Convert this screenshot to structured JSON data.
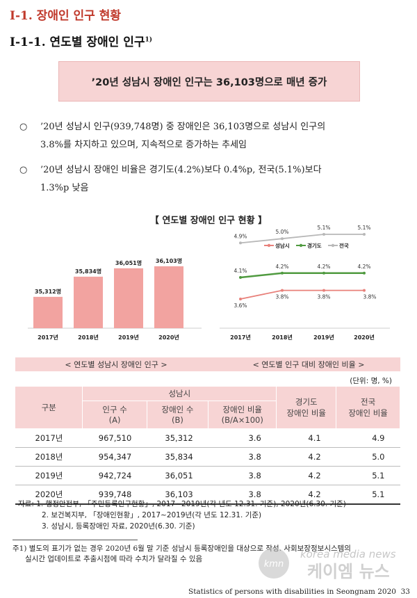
{
  "heading1": "I-1. 장애인 인구 현황",
  "heading2": "I-1-1. 연도별 장애인 인구",
  "heading2_sup": "1)",
  "banner": "’20년 성남시 장애인 인구는 36,103명으로 매년 증가",
  "bullets": [
    {
      "marker": "○",
      "line1": "’20년 성남시 인구(939,748명) 중 장애인은 36,103명으로 성남시 인구의",
      "line2": "3.8%를 차지하고 있으며, 지속적으로 증가하는 추세임"
    },
    {
      "marker": "○",
      "line1": "’20년 성남시 장애인 비율은 경기도(4.2%)보다 0.4%p, 전국(5.1%)보다",
      "line2": "1.3%p 낮음"
    }
  ],
  "section_title": "【 연도별 장애인 인구 현황 】",
  "caption_left": "< 연도별 성남시 장애인 인구 >",
  "caption_right": "< 연도별 인구 대비 장애인 비율 >",
  "unit": "(단위: 명, %)",
  "chart_data": [
    {
      "type": "bar",
      "categories": [
        "2017년",
        "2018년",
        "2019년",
        "2020년"
      ],
      "values": [
        35312,
        35834,
        36051,
        36103
      ],
      "value_labels": [
        "35,312명",
        "35,834명",
        "36,051명",
        "36,103명"
      ],
      "color": "#f2a3a0"
    },
    {
      "type": "line",
      "categories": [
        "2017년",
        "2018년",
        "2019년",
        "2020년"
      ],
      "series": [
        {
          "name": "성남시",
          "values": [
            3.6,
            3.8,
            3.8,
            3.8
          ],
          "labels": [
            "3.6%",
            "3.8%",
            "3.8%",
            "3.8%"
          ],
          "color": "#e8807a"
        },
        {
          "name": "경기도",
          "values": [
            4.1,
            4.2,
            4.2,
            4.2
          ],
          "labels": [
            "4.1%",
            "4.2%",
            "4.2%",
            "4.2%"
          ],
          "color": "#4f9a3f"
        },
        {
          "name": "전국",
          "values": [
            4.9,
            5.0,
            5.1,
            5.1
          ],
          "labels": [
            "4.9%",
            "5.0%",
            "5.1%",
            "5.1%"
          ],
          "color": "#b8b8b8"
        }
      ],
      "legend_position": "top-right"
    }
  ],
  "table": {
    "h_gubun": "구분",
    "h_seongnam": "성남시",
    "h_pop_1": "인구 수",
    "h_pop_2": "(A)",
    "h_dis_1": "장애인 수",
    "h_dis_2": "(B)",
    "h_ratio_1": "장애인 비율",
    "h_ratio_2": "(B/A×100)",
    "h_gg_1": "경기도",
    "h_gg_2": "장애인 비율",
    "h_nat_1": "전국",
    "h_nat_2": "장애인 비율",
    "rows": [
      {
        "year": "2017년",
        "pop": "967,510",
        "dis": "35,312",
        "ratio": "3.6",
        "gg": "4.1",
        "nat": "4.9"
      },
      {
        "year": "2018년",
        "pop": "954,347",
        "dis": "35,834",
        "ratio": "3.8",
        "gg": "4.2",
        "nat": "5.0"
      },
      {
        "year": "2019년",
        "pop": "942,724",
        "dis": "36,051",
        "ratio": "3.8",
        "gg": "4.2",
        "nat": "5.1"
      },
      {
        "year": "2020년",
        "pop": "939,748",
        "dis": "36,103",
        "ratio": "3.8",
        "gg": "4.2",
        "nat": "5.1"
      }
    ]
  },
  "sources": [
    "자료: 1. 행정안전부, 「주민등록인구현황」, 2017~2019년(각 년도 12.31. 기준), 2020년(6.30. 기준)",
    "2. 보건복지부, 「장애인현황」, 2017~2019년(각 년도 12.31. 기준)",
    "3. 성남시, 등록장애인 자료, 2020년(6.30. 기준)"
  ],
  "footnote_1": "주1) 별도의 표기가 없는 경우 2020년 6월 말 기준 성남시 등록장애인을 대상으로 작성. 사회보장정보시스템의",
  "footnote_2": "실시간 업데이트로 추출시점에 따라 수치가 달라질 수 있음",
  "watermark_1": "korea media news",
  "watermark_2": "케이엠 뉴스",
  "watermark_logo": "kmn",
  "footer_text": "Statistics of persons with disabilities in Seongnam 2020",
  "page_number": "33"
}
